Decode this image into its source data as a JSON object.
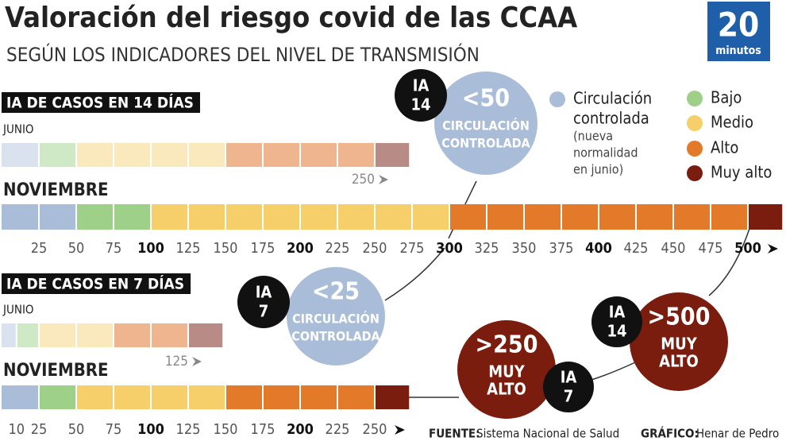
{
  "header": {
    "title": "Valoración del riesgo covid de las CCAA",
    "subtitle": "SEGÚN LOS INDICADORES DEL NIVEL DE TRANSMISIÓN",
    "logo": {
      "number": "20",
      "text": "minutos"
    }
  },
  "panels": [
    {
      "title": "IA DE CASOS EN 14 DÍAS",
      "rows": [
        {
          "label": "JUNIO",
          "segments": [
            {
              "from": 0,
              "to": 25,
              "color": "#d9e2ee"
            },
            {
              "from": 25,
              "to": 50,
              "color": "#cfe8c6"
            },
            {
              "from": 50,
              "to": 150,
              "color": "#fbe9be"
            },
            {
              "from": 150,
              "to": 250,
              "color": "#eeb58f"
            },
            {
              "from": 250,
              "to": 273,
              "color": "#b88b86"
            }
          ],
          "marker": 250
        },
        {
          "label": "NOVIEMBRE",
          "segments": [
            {
              "from": 0,
              "to": 50,
              "color": "#a9bdd8"
            },
            {
              "from": 50,
              "to": 100,
              "color": "#9fd08a"
            },
            {
              "from": 100,
              "to": 300,
              "color": "#f7cf6a"
            },
            {
              "from": 300,
              "to": 500,
              "color": "#e27a2a"
            },
            {
              "from": 500,
              "to": 523,
              "color": "#7a1d0e"
            }
          ]
        }
      ],
      "ticks": [
        25,
        50,
        75,
        100,
        125,
        150,
        175,
        200,
        225,
        250,
        275,
        300,
        325,
        350,
        375,
        400,
        425,
        450,
        475,
        500
      ]
    },
    {
      "title": "IA DE CASOS EN 7 DÍAS",
      "rows": [
        {
          "label": "JUNIO",
          "segments": [
            {
              "from": 0,
              "to": 10,
              "color": "#d9e2ee"
            },
            {
              "from": 10,
              "to": 25,
              "color": "#cfe8c6"
            },
            {
              "from": 25,
              "to": 75,
              "color": "#fbe9be"
            },
            {
              "from": 75,
              "to": 125,
              "color": "#eeb58f"
            },
            {
              "from": 125,
              "to": 148,
              "color": "#b88b86"
            }
          ],
          "marker": 125
        },
        {
          "label": "NOVIEMBRE",
          "segments": [
            {
              "from": 0,
              "to": 25,
              "color": "#a9bdd8"
            },
            {
              "from": 25,
              "to": 50,
              "color": "#9fd08a"
            },
            {
              "from": 50,
              "to": 150,
              "color": "#f7cf6a"
            },
            {
              "from": 150,
              "to": 250,
              "color": "#e27a2a"
            },
            {
              "from": 250,
              "to": 273,
              "color": "#7a1d0e"
            }
          ]
        }
      ],
      "ticks": [
        10,
        25,
        50,
        75,
        100,
        125,
        150,
        175,
        200,
        225,
        250
      ]
    }
  ],
  "bubbles": [
    {
      "tag": [
        "IA",
        "14"
      ],
      "lines": [
        "<50",
        "CIRCULACIÓN",
        "CONTROLADA"
      ],
      "color": "#a9bdd8"
    },
    {
      "tag": [
        "IA",
        "7"
      ],
      "lines": [
        "<25",
        "CIRCULACIÓN",
        "CONTROLADA"
      ],
      "color": "#a9bdd8"
    },
    {
      "tag": [
        "IA",
        "7"
      ],
      "lines": [
        ">250",
        "MUY",
        "ALTO"
      ],
      "color": "#7a1d0e"
    },
    {
      "tag": [
        "IA",
        "14"
      ],
      "lines": [
        ">500",
        "MUY",
        "ALTO"
      ],
      "color": "#7a1d0e"
    }
  ],
  "legend": [
    {
      "lines": [
        "Circulación",
        "controlada"
      ],
      "note": [
        "(nueva",
        "normalidad",
        "en junio)"
      ],
      "color": "#a9bdd8"
    },
    {
      "lines": [
        "Bajo"
      ],
      "color": "#9fd08a"
    },
    {
      "lines": [
        "Medio"
      ],
      "color": "#f7cf6a"
    },
    {
      "lines": [
        "Alto"
      ],
      "color": "#e27a2a"
    },
    {
      "lines": [
        "Muy alto"
      ],
      "color": "#7a1d0e"
    }
  ],
  "footer": {
    "source_label": "FUENTE:",
    "source": "Sistema Nacional de Salud",
    "credit_label": "GRÁFICO:",
    "credit": "Henar de Pedro"
  }
}
